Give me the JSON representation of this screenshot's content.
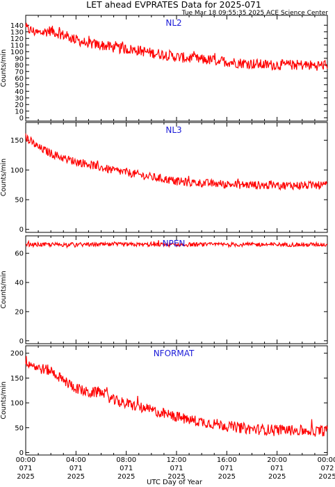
{
  "title": "LET ahead EVPRATES Data for 2025-071",
  "timestamp": "Tue Mar 18 09:55:35 2025 ACE Science Center",
  "xlabel": "UTC Day of Year",
  "colors": {
    "series": "#ff0000",
    "panel_label": "#1a1ad8"
  },
  "x_ticks": [
    [
      "00:00",
      "071",
      "2025"
    ],
    [
      "04:00",
      "071",
      "2025"
    ],
    [
      "08:00",
      "071",
      "2025"
    ],
    [
      "12:00",
      "071",
      "2025"
    ],
    [
      "16:00",
      "071",
      "2025"
    ],
    [
      "20:00",
      "071",
      "2025"
    ],
    [
      "00:00",
      "072",
      "2025"
    ]
  ],
  "chart_data": [
    {
      "type": "line",
      "name": "NL2",
      "ylabel": "Counts/min",
      "ylim": [
        -5,
        155
      ],
      "yticks": [
        0,
        10,
        20,
        30,
        40,
        50,
        60,
        70,
        80,
        90,
        100,
        110,
        120,
        130,
        140
      ],
      "x_hours": [
        0,
        1,
        2,
        3,
        4,
        5,
        6,
        7,
        8,
        9,
        10,
        11,
        12,
        13,
        14,
        15,
        16,
        17,
        18,
        19,
        20,
        21,
        22,
        23,
        24
      ],
      "y": [
        135,
        128,
        132,
        125,
        118,
        112,
        110,
        106,
        104,
        102,
        98,
        96,
        92,
        90,
        88,
        87,
        85,
        83,
        82,
        80,
        80,
        80,
        80,
        79,
        80
      ],
      "noise": 8
    },
    {
      "type": "line",
      "name": "NL3",
      "ylabel": "Counts/min",
      "ylim": [
        -5,
        180
      ],
      "yticks": [
        0,
        50,
        100,
        150
      ],
      "x_hours": [
        0,
        1,
        2,
        3,
        4,
        5,
        6,
        7,
        8,
        9,
        10,
        11,
        12,
        13,
        14,
        15,
        16,
        17,
        18,
        19,
        20,
        21,
        22,
        23,
        24
      ],
      "y": [
        155,
        138,
        128,
        120,
        114,
        110,
        104,
        99,
        96,
        92,
        88,
        85,
        81,
        79,
        78,
        77,
        76,
        75,
        75,
        74,
        74,
        74,
        74,
        74,
        74
      ],
      "noise": 7
    },
    {
      "type": "line",
      "name": "NPEN",
      "ylabel": "Counts/min",
      "ylim": [
        -2,
        72
      ],
      "yticks": [
        0,
        20,
        40,
        60
      ],
      "x_hours": [
        0,
        6,
        12,
        18,
        24
      ],
      "y": [
        66,
        66,
        66,
        66,
        66
      ],
      "noise": 1.4
    },
    {
      "type": "line",
      "name": "NFORMAT",
      "ylabel": "Counts/min",
      "ylim": [
        -5,
        215
      ],
      "yticks": [
        0,
        50,
        100,
        150,
        200
      ],
      "x_hours": [
        0,
        1,
        2,
        3,
        4,
        5,
        6,
        7,
        8,
        9,
        10,
        11,
        12,
        13,
        14,
        15,
        16,
        17,
        18,
        19,
        20,
        21,
        22,
        23,
        24
      ],
      "y": [
        185,
        170,
        165,
        145,
        130,
        120,
        122,
        105,
        98,
        92,
        85,
        78,
        72,
        66,
        62,
        58,
        54,
        50,
        47,
        46,
        46,
        45,
        44,
        43,
        44
      ],
      "noise": 11
    }
  ]
}
